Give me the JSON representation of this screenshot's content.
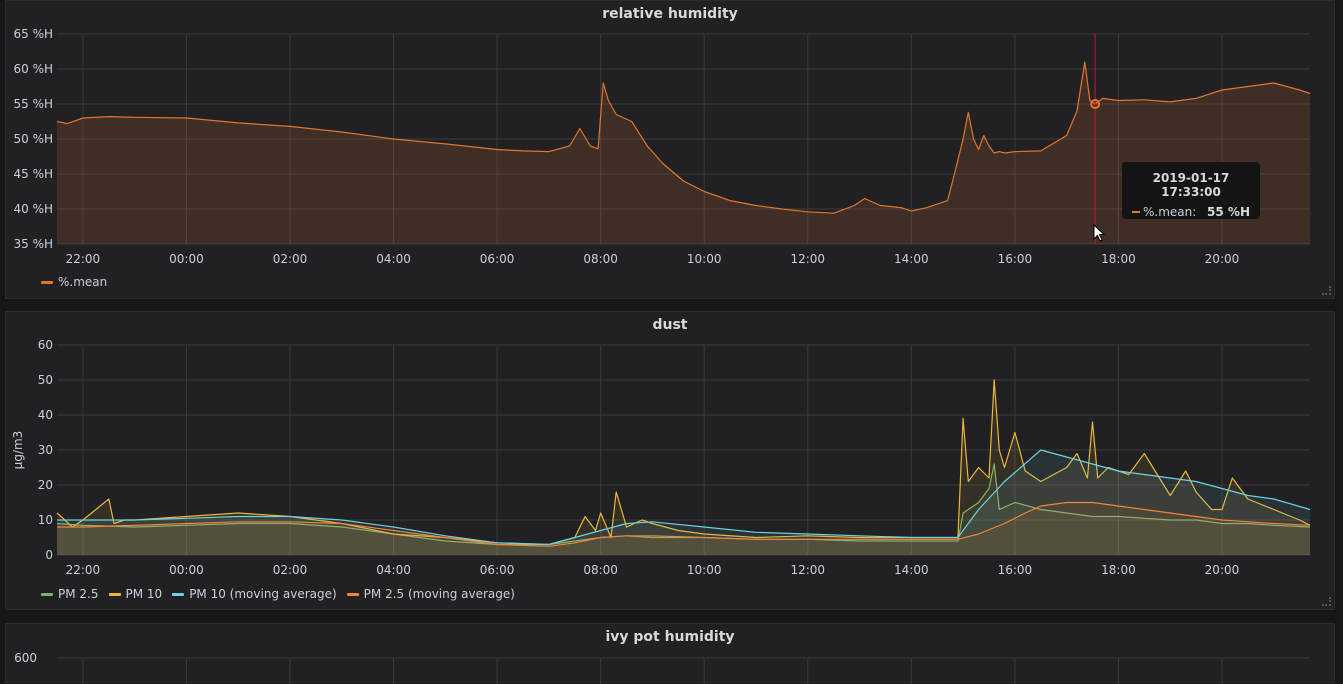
{
  "colors": {
    "humidity": "#e0752d",
    "pm25": "#7eb26d",
    "pm10": "#eab839",
    "pm10_ma": "#6ed0e0",
    "pm25_ma": "#ef843c",
    "grid": "#3a3a3e",
    "crosshair": "#c4162a"
  },
  "panels": [
    {
      "title": "relative humidity",
      "legend": [
        {
          "label": "%.mean",
          "color": "#e0752d"
        }
      ]
    },
    {
      "title": "dust",
      "ylabel": "µg/m3",
      "legend": [
        {
          "label": "PM 2.5",
          "color": "#7eb26d"
        },
        {
          "label": "PM 10",
          "color": "#eab839"
        },
        {
          "label": "PM 10 (moving average)",
          "color": "#6ed0e0"
        },
        {
          "label": "PM 2.5 (moving average)",
          "color": "#ef843c"
        }
      ]
    },
    {
      "title": "ivy pot humidity",
      "first_tick": "600"
    }
  ],
  "tooltip": {
    "time": "2019-01-17 17:33:00",
    "label": "%.mean:",
    "value": "55 %H"
  },
  "chart_data": [
    {
      "type": "area",
      "title": "relative humidity",
      "xlabel": "",
      "ylabel": "",
      "xlim": [
        21.5,
        45.7
      ],
      "ylim": [
        35,
        65
      ],
      "x_ticks": [
        "22:00",
        "00:00",
        "02:00",
        "04:00",
        "06:00",
        "08:00",
        "10:00",
        "12:00",
        "14:00",
        "16:00",
        "18:00",
        "20:00"
      ],
      "x_tick_values": [
        22,
        24,
        26,
        28,
        30,
        32,
        34,
        36,
        38,
        40,
        42,
        44
      ],
      "y_ticks": [
        "35 %H",
        "40 %H",
        "45 %H",
        "50 %H",
        "55 %H",
        "60 %H",
        "65 %H"
      ],
      "y_tick_values": [
        35,
        40,
        45,
        50,
        55,
        60,
        65
      ],
      "grid": true,
      "legend_position": "bottom-left",
      "crosshair_x": 41.55,
      "series": [
        {
          "name": "%.mean",
          "color": "#e0752d",
          "x": [
            21.5,
            21.7,
            22.0,
            22.5,
            23.0,
            24.0,
            25.0,
            26.0,
            27.0,
            28.0,
            29.0,
            30.0,
            30.5,
            31.0,
            31.4,
            31.6,
            31.8,
            31.95,
            32.05,
            32.15,
            32.3,
            32.6,
            32.9,
            33.2,
            33.6,
            34.0,
            34.5,
            35.0,
            35.5,
            36.0,
            36.5,
            36.9,
            37.1,
            37.4,
            37.8,
            38.0,
            38.3,
            38.7,
            38.85,
            39.0,
            39.1,
            39.2,
            39.3,
            39.4,
            39.5,
            39.6,
            39.7,
            39.8,
            40.0,
            40.5,
            41.0,
            41.2,
            41.35,
            41.45,
            41.55,
            41.7,
            42.0,
            42.5,
            43.0,
            43.5,
            44.0,
            44.5,
            45.0,
            45.5,
            45.7
          ],
          "y": [
            52.5,
            52.2,
            53.0,
            53.2,
            53.1,
            53.0,
            52.3,
            51.8,
            51.0,
            50.0,
            49.3,
            48.5,
            48.3,
            48.2,
            49.0,
            51.5,
            49.0,
            48.6,
            58.0,
            55.5,
            53.5,
            52.5,
            49.0,
            46.5,
            44.0,
            42.5,
            41.2,
            40.5,
            40.0,
            39.6,
            39.4,
            40.5,
            41.5,
            40.5,
            40.2,
            39.7,
            40.2,
            41.2,
            45.5,
            50.0,
            53.8,
            50.0,
            48.5,
            50.5,
            49.0,
            48.0,
            48.2,
            48.0,
            48.2,
            48.3,
            50.5,
            54.0,
            61.0,
            55.5,
            55.0,
            55.8,
            55.5,
            55.6,
            55.3,
            55.8,
            57.0,
            57.5,
            58.0,
            57.0,
            56.5
          ]
        }
      ]
    },
    {
      "type": "area",
      "title": "dust",
      "xlabel": "",
      "ylabel": "µg/m3",
      "xlim": [
        21.5,
        45.7
      ],
      "ylim": [
        0,
        60
      ],
      "x_ticks": [
        "22:00",
        "00:00",
        "02:00",
        "04:00",
        "06:00",
        "08:00",
        "10:00",
        "12:00",
        "14:00",
        "16:00",
        "18:00",
        "20:00"
      ],
      "x_tick_values": [
        22,
        24,
        26,
        28,
        30,
        32,
        34,
        36,
        38,
        40,
        42,
        44
      ],
      "y_ticks": [
        "0",
        "10",
        "20",
        "30",
        "40",
        "50",
        "60"
      ],
      "y_tick_values": [
        0,
        10,
        20,
        30,
        40,
        50,
        60
      ],
      "grid": true,
      "legend_position": "bottom-left",
      "series": [
        {
          "name": "PM 2.5",
          "color": "#7eb26d",
          "x": [
            21.5,
            22.0,
            23.0,
            24.0,
            25.0,
            26.0,
            27.0,
            28.0,
            29.0,
            30.0,
            31.0,
            31.5,
            32.0,
            32.5,
            33.0,
            34.0,
            35.0,
            36.0,
            37.0,
            38.0,
            38.9,
            39.0,
            39.3,
            39.5,
            39.6,
            39.7,
            40.0,
            40.5,
            41.0,
            41.5,
            42.0,
            42.5,
            43.0,
            43.5,
            44.0,
            44.5,
            45.0,
            45.7
          ],
          "y": [
            9,
            8.5,
            8,
            8.5,
            9,
            9,
            8,
            6,
            4,
            3,
            3,
            4,
            5,
            5.5,
            5,
            5,
            4.5,
            4.5,
            4,
            4,
            4,
            12,
            15,
            19,
            26,
            13,
            15,
            13,
            12,
            11,
            11,
            10.5,
            10,
            10,
            9,
            9,
            8.5,
            8
          ]
        },
        {
          "name": "PM 10",
          "color": "#eab839",
          "x": [
            21.5,
            21.8,
            22.0,
            22.5,
            22.6,
            22.8,
            23.0,
            24.0,
            25.0,
            26.0,
            27.0,
            28.0,
            29.0,
            30.0,
            31.0,
            31.5,
            31.7,
            31.9,
            32.0,
            32.2,
            32.3,
            32.5,
            32.8,
            33.0,
            33.5,
            34.0,
            35.0,
            36.0,
            37.0,
            38.0,
            38.9,
            39.0,
            39.1,
            39.3,
            39.5,
            39.6,
            39.7,
            39.8,
            40.0,
            40.2,
            40.5,
            41.0,
            41.2,
            41.4,
            41.5,
            41.6,
            41.8,
            42.0,
            42.2,
            42.5,
            43.0,
            43.3,
            43.5,
            43.8,
            44.0,
            44.2,
            44.5,
            45.0,
            45.5,
            45.7
          ],
          "y": [
            12,
            8,
            10,
            16,
            9,
            10,
            10,
            11,
            12,
            11,
            9,
            6,
            5,
            3.5,
            3,
            5,
            11,
            7,
            12,
            5,
            18,
            8,
            10,
            9,
            7,
            6,
            5,
            5.5,
            5,
            5,
            5,
            39,
            21,
            25,
            22,
            50,
            30,
            25,
            35,
            24,
            21,
            25,
            29,
            22,
            38,
            22,
            25,
            24,
            23,
            29,
            17,
            24,
            18,
            13,
            13,
            22,
            16,
            13,
            10,
            8.5
          ]
        },
        {
          "name": "PM 10 (moving average)",
          "color": "#6ed0e0",
          "x": [
            21.5,
            22.0,
            23.0,
            24.0,
            25.0,
            26.0,
            27.0,
            28.0,
            29.0,
            30.0,
            31.0,
            31.5,
            32.0,
            32.5,
            33.0,
            34.0,
            35.0,
            36.0,
            37.0,
            38.0,
            38.9,
            39.3,
            39.8,
            40.5,
            41.0,
            41.5,
            42.0,
            42.5,
            43.0,
            43.5,
            44.0,
            44.5,
            45.0,
            45.7
          ],
          "y": [
            10,
            10,
            10,
            10.5,
            11,
            11,
            10,
            8,
            5.5,
            3.5,
            3,
            5,
            7,
            9,
            9.5,
            8,
            6.5,
            6,
            5.5,
            5,
            5,
            13,
            21,
            30,
            28,
            26,
            24,
            23,
            22,
            21,
            19,
            17,
            16,
            13
          ]
        },
        {
          "name": "PM 2.5 (moving average)",
          "color": "#ef843c",
          "x": [
            21.5,
            22.0,
            23.0,
            24.0,
            25.0,
            26.0,
            27.0,
            28.0,
            29.0,
            30.0,
            31.0,
            31.5,
            32.0,
            32.5,
            33.0,
            34.0,
            35.0,
            36.0,
            37.0,
            38.0,
            38.9,
            39.3,
            39.8,
            40.2,
            40.5,
            41.0,
            41.5,
            42.0,
            42.5,
            43.0,
            43.5,
            44.0,
            44.5,
            45.0,
            45.7
          ],
          "y": [
            8,
            8,
            8.5,
            9,
            9.5,
            9.5,
            9,
            7,
            5,
            3,
            2.5,
            3.5,
            5,
            5.5,
            5.5,
            5,
            4.5,
            4.5,
            4.5,
            4.5,
            4.5,
            6,
            9,
            12,
            14,
            15,
            15,
            14,
            13,
            12,
            11,
            10,
            9.5,
            9,
            8.5
          ]
        }
      ]
    }
  ]
}
